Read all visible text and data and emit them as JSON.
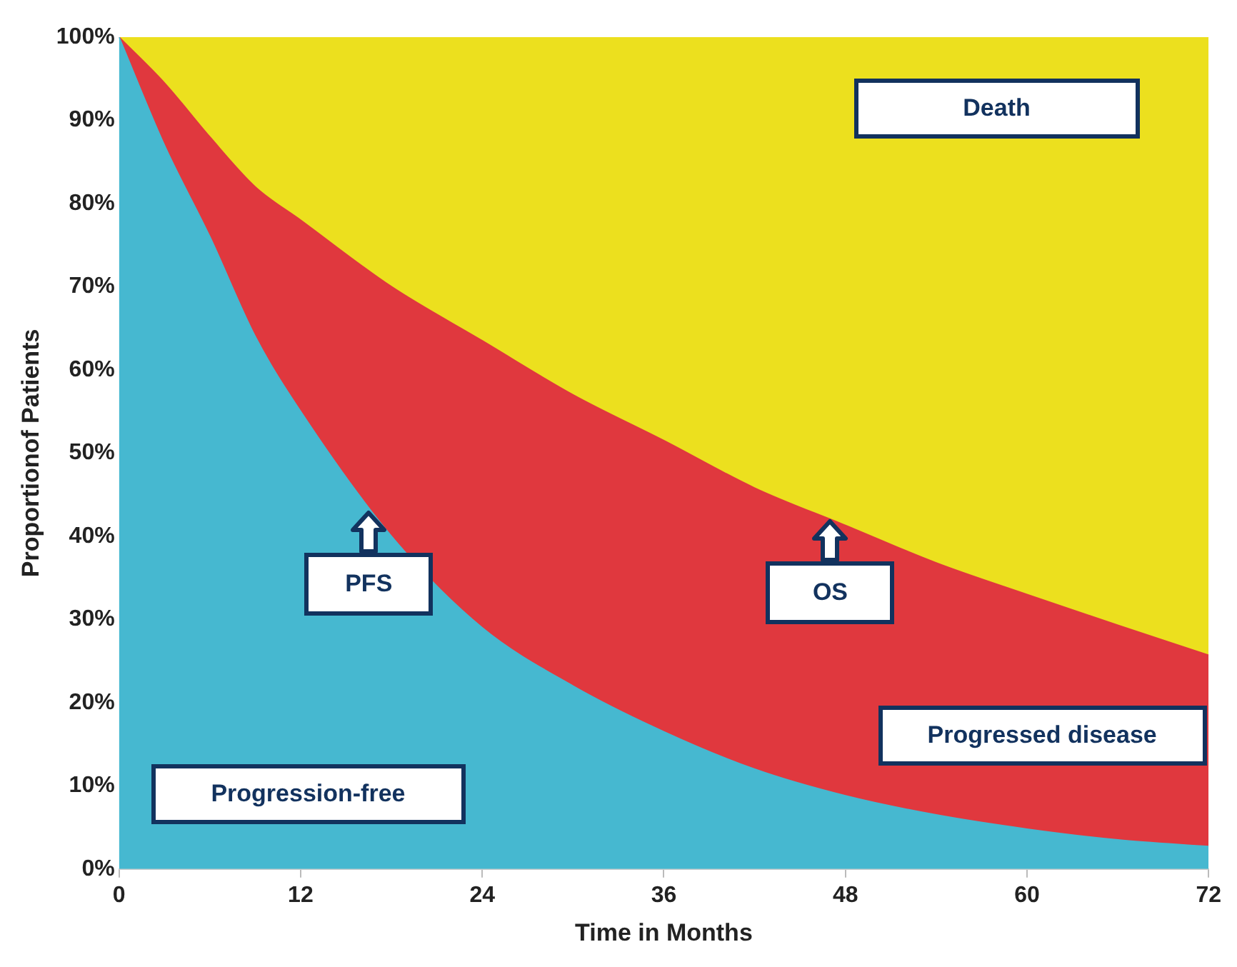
{
  "chart_data": {
    "type": "area",
    "stacked": true,
    "xlabel": "Time in Months",
    "ylabel": "Proportionof Patients",
    "x": [
      0,
      3,
      6,
      9,
      12,
      18,
      24,
      30,
      36,
      42,
      48,
      54,
      60,
      66,
      72
    ],
    "series": [
      {
        "name": "Progression-free",
        "color": "#46b8d0",
        "values": [
          100,
          87,
          76,
          64,
          55,
          40,
          29,
          22,
          16.5,
          12,
          8.8,
          6.5,
          4.8,
          3.5,
          2.7
        ]
      },
      {
        "name": "Progressed disease",
        "color": "#e0383e",
        "values": [
          0,
          7.5,
          12,
          18,
          23,
          30,
          34.5,
          35,
          35,
          33.8,
          32.5,
          30.3,
          28.2,
          25.8,
          23
        ]
      },
      {
        "name": "Death",
        "color": "#ece01e",
        "values": [
          0,
          5.5,
          12,
          18,
          22,
          30,
          36.5,
          43,
          48.5,
          54.2,
          58.7,
          63.2,
          67,
          70.7,
          74.3
        ]
      }
    ],
    "annotations": [
      {
        "text": "PFS",
        "x": 16.5,
        "y": 43
      },
      {
        "text": "OS",
        "x": 47,
        "y": 42
      }
    ],
    "xlim": [
      0,
      72
    ],
    "xticks": [
      0,
      12,
      24,
      36,
      48,
      60,
      72
    ],
    "ylim": [
      0,
      100
    ],
    "yticks": [
      {
        "value": 0,
        "label": "0%"
      },
      {
        "value": 10,
        "label": "10%"
      },
      {
        "value": 20,
        "label": "20%"
      },
      {
        "value": 30,
        "label": "30%"
      },
      {
        "value": 40,
        "label": "40%"
      },
      {
        "value": 50,
        "label": "50%"
      },
      {
        "value": 60,
        "label": "60%"
      },
      {
        "value": 70,
        "label": "70%"
      },
      {
        "value": 80,
        "label": "80%"
      },
      {
        "value": 90,
        "label": "90%"
      },
      {
        "value": 100,
        "label": "100%"
      }
    ],
    "grid": false,
    "legend": false
  }
}
